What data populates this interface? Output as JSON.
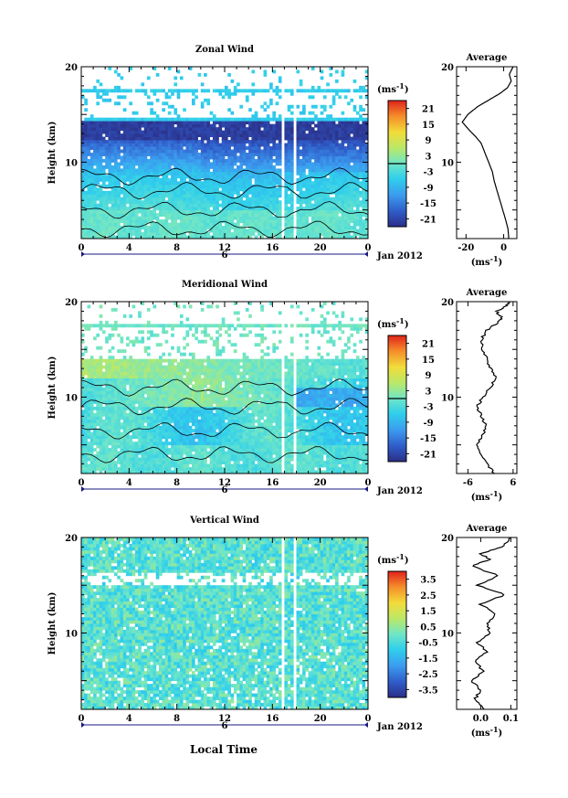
{
  "figure": {
    "xlabel": "Local Time",
    "date_label": "Jan 2012",
    "day_label": "6"
  },
  "chart_data": [
    {
      "type": "heatmap",
      "title": "Zonal Wind",
      "ylabel": "Height (km)",
      "xlabel": "Local Time",
      "x_range": [
        0,
        24
      ],
      "x_ticks": [
        "0",
        "4",
        "8",
        "12",
        "16",
        "20",
        "0"
      ],
      "y_range": [
        2,
        20
      ],
      "y_ticks": [
        {
          "v": 10,
          "t": "10"
        },
        {
          "v": 20,
          "t": "20"
        }
      ],
      "colorbar": {
        "unit_label": "(ms",
        "unit_sup": "-1",
        "unit_close": ")",
        "ticks": [
          "21",
          "15",
          "9",
          "3",
          "-3",
          "-9",
          "-15",
          "-21"
        ],
        "range": [
          -24,
          24
        ]
      },
      "contour_level": 0,
      "data_gaps_hours": [
        [
          16.8,
          17.0
        ],
        [
          17.7,
          18.1
        ]
      ],
      "average_profile": {
        "title": "Average",
        "xlabel": "(ms",
        "xlabel_sup": "-1",
        "xlabel_close": ")",
        "x_range": [
          -25,
          7
        ],
        "x_ticks": [
          "-20",
          "0"
        ],
        "x_tick_values": [
          -20,
          0
        ],
        "y_ticks": [
          "10",
          "20"
        ],
        "points": [
          [
            2.7,
            2
          ],
          [
            2.3,
            3
          ],
          [
            1.0,
            4
          ],
          [
            -0.5,
            5
          ],
          [
            -2,
            6
          ],
          [
            -3.5,
            7
          ],
          [
            -5,
            8
          ],
          [
            -6,
            9
          ],
          [
            -8,
            10
          ],
          [
            -10,
            11
          ],
          [
            -12,
            12
          ],
          [
            -15,
            12.7
          ],
          [
            -18,
            13.3
          ],
          [
            -22,
            14.2
          ],
          [
            -19,
            15
          ],
          [
            -14,
            15.8
          ],
          [
            -8,
            16.5
          ],
          [
            -2,
            17.2
          ],
          [
            2,
            17.8
          ],
          [
            4,
            18.5
          ],
          [
            3,
            19.2
          ],
          [
            5,
            20
          ]
        ]
      }
    },
    {
      "type": "heatmap",
      "title": "Meridional Wind",
      "ylabel": "Height (km)",
      "xlabel": "Local Time",
      "x_range": [
        0,
        24
      ],
      "x_ticks": [
        "0",
        "4",
        "8",
        "12",
        "16",
        "20",
        "0"
      ],
      "y_range": [
        2,
        20
      ],
      "y_ticks": [
        {
          "v": 10,
          "t": "10"
        },
        {
          "v": 20,
          "t": "20"
        }
      ],
      "colorbar": {
        "unit_label": "(ms",
        "unit_sup": "-1",
        "unit_close": ")",
        "ticks": [
          "21",
          "15",
          "9",
          "3",
          "-3",
          "-9",
          "-15",
          "-21"
        ],
        "range": [
          -24,
          24
        ]
      },
      "contour_level": 0,
      "data_gaps_hours": [
        [
          16.8,
          17.0
        ],
        [
          17.7,
          18.1
        ]
      ],
      "average_profile": {
        "title": "Average",
        "xlabel": "(ms",
        "xlabel_sup": "-1",
        "xlabel_close": ")",
        "x_range": [
          -9,
          7
        ],
        "x_ticks": [
          "-6",
          "6"
        ],
        "x_tick_values": [
          -6,
          6
        ],
        "y_ticks": [
          "10",
          "20"
        ],
        "points": [
          [
            1.0,
            2
          ],
          [
            -1.0,
            3
          ],
          [
            -2.5,
            4
          ],
          [
            -3.5,
            5
          ],
          [
            -2,
            6
          ],
          [
            -1,
            7
          ],
          [
            -2.5,
            8
          ],
          [
            -3.5,
            9
          ],
          [
            -2,
            10
          ],
          [
            0,
            11
          ],
          [
            1.5,
            12
          ],
          [
            0,
            13
          ],
          [
            -1,
            14
          ],
          [
            -2,
            15
          ],
          [
            -2.5,
            16
          ],
          [
            -1,
            17
          ],
          [
            1.5,
            17.7
          ],
          [
            3,
            18.3
          ],
          [
            1.5,
            19
          ],
          [
            4,
            19.5
          ],
          [
            5,
            20
          ]
        ]
      }
    },
    {
      "type": "heatmap",
      "title": "Vertical Wind",
      "ylabel": "Height (km)",
      "xlabel": "Local Time",
      "x_range": [
        0,
        24
      ],
      "x_ticks": [
        "0",
        "4",
        "8",
        "12",
        "16",
        "20",
        "0"
      ],
      "y_range": [
        2,
        20
      ],
      "y_ticks": [
        {
          "v": 10,
          "t": "10"
        },
        {
          "v": 20,
          "t": "20"
        }
      ],
      "colorbar": {
        "unit_label": "(ms",
        "unit_sup": "-1",
        "unit_close": ")",
        "ticks": [
          "3.5",
          "2.5",
          "1.5",
          "0.5",
          "-0.5",
          "-1.5",
          "-2.5",
          "-3.5"
        ],
        "range": [
          -4,
          4
        ]
      },
      "data_gaps_hours": [
        [
          16.8,
          17.0
        ],
        [
          17.7,
          18.1
        ]
      ],
      "average_profile": {
        "title": "Average",
        "xlabel": "(ms",
        "xlabel_sup": "-1",
        "xlabel_close": ")",
        "x_range": [
          -0.08,
          0.12
        ],
        "x_ticks": [
          "0.0",
          "0.1"
        ],
        "x_tick_values": [
          0.0,
          0.1
        ],
        "y_ticks": [
          "10",
          "20"
        ],
        "points": [
          [
            0.01,
            2
          ],
          [
            -0.02,
            3
          ],
          [
            0.0,
            4
          ],
          [
            -0.03,
            5
          ],
          [
            0.01,
            6
          ],
          [
            -0.02,
            7
          ],
          [
            0.02,
            8
          ],
          [
            -0.01,
            9
          ],
          [
            0.03,
            10
          ],
          [
            0.02,
            11
          ],
          [
            0.05,
            12
          ],
          [
            0.0,
            13
          ],
          [
            0.08,
            14
          ],
          [
            -0.01,
            15
          ],
          [
            0.06,
            16
          ],
          [
            -0.03,
            17
          ],
          [
            0.03,
            17.7
          ],
          [
            0.0,
            18.3
          ],
          [
            0.07,
            19
          ],
          [
            0.1,
            20
          ]
        ]
      }
    }
  ]
}
